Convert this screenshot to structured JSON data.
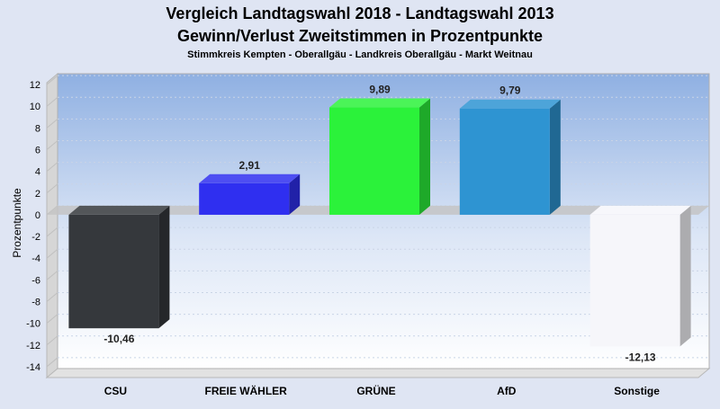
{
  "chart_data": {
    "type": "bar",
    "title": "Vergleich Landtagswahl 2018 - Landtagswahl 2013",
    "title_line2": "Gewinn/Verlust Zweitstimmen in Prozentpunkte",
    "subtitle": "Stimmkreis Kempten - Oberallgäu - Landkreis Oberallgäu - Markt Weitnau",
    "ylabel": "Prozentpunkte",
    "xlabel": "",
    "categories": [
      "CSU",
      "FREIE WÄHLER",
      "GRÜNE",
      "AfD",
      "Sonstige"
    ],
    "values": [
      -10.46,
      2.91,
      9.89,
      9.79,
      -12.13
    ],
    "value_labels": [
      "-10,46",
      "2,91",
      "9,89",
      "9,79",
      "-12,13"
    ],
    "colors": [
      "#35383c",
      "#2f2ff0",
      "#2bf23a",
      "#2e94d2",
      "#f6f6fa"
    ],
    "ylim": [
      -15,
      13
    ],
    "yticks": [
      12,
      10,
      8,
      6,
      4,
      2,
      0,
      -2,
      -4,
      -6,
      -8,
      -10,
      -12,
      -14
    ],
    "grid": true,
    "legend": "none",
    "style": "3d"
  }
}
